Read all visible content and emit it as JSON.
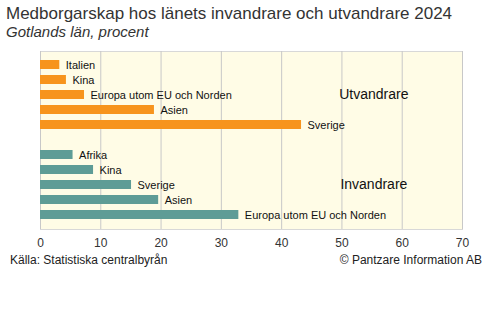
{
  "chart_data": {
    "type": "bar",
    "orientation": "horizontal",
    "title": "Medborgarskap hos länets invandrare och utvandrare 2024",
    "subtitle": "Gotlands län, procent",
    "source": "Källa: Statistiska centralbyrån",
    "credit": "© Pantzare Information AB",
    "categories": [
      "Italien",
      "Kina",
      "Europa utom EU och Norden",
      "Asien",
      "Sverige",
      "Afrika",
      "Kina",
      "Sverige",
      "Asien",
      "Europa utom EU och Norden"
    ],
    "series": [
      {
        "name": "Utvandrare",
        "color": "#f7941d",
        "values": [
          3.2,
          4.3,
          7.3,
          18.9,
          43.3,
          null,
          null,
          null,
          null,
          null
        ]
      },
      {
        "name": "Invandrare",
        "color": "#5e9c96",
        "values": [
          null,
          null,
          null,
          null,
          null,
          5.4,
          8.8,
          15.1,
          19.6,
          32.9
        ]
      }
    ],
    "xlim": [
      0,
      70
    ],
    "xticks": [
      0,
      10,
      20,
      30,
      40,
      50,
      60,
      70
    ],
    "grid": true,
    "tick_labels": "x"
  }
}
